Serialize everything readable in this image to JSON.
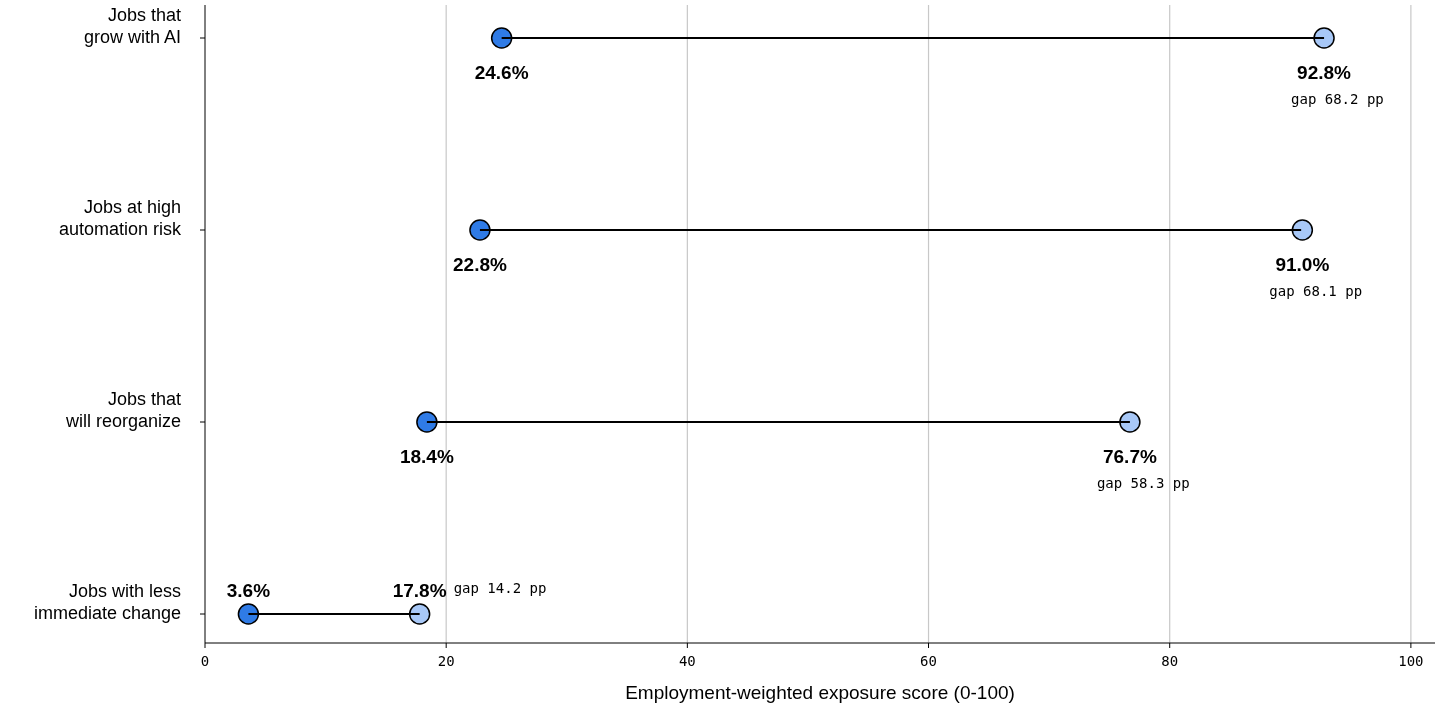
{
  "chart_data": {
    "type": "bar",
    "orientation": "horizontal",
    "xlabel": "Employment-weighted exposure score (0-100)",
    "categories": [
      "Jobs that\ngrow with AI",
      "Jobs at high\nautomation risk",
      "Jobs that\nwill reorganize",
      "Jobs with less\nimmediate change"
    ],
    "xlim": [
      0,
      102
    ],
    "xticks": [
      0,
      20,
      40,
      60,
      80,
      100
    ],
    "grid": "x",
    "marker": "circle",
    "series": [
      {
        "type": "scatter",
        "color": "#2f7be6",
        "values": [
          24.6,
          22.8,
          18.4,
          3.6
        ],
        "value_labels": [
          "24.6%",
          "22.8%",
          "18.4%",
          "3.6%"
        ]
      },
      {
        "type": "scatter",
        "color": "#a8c8f7",
        "values": [
          92.8,
          91.0,
          76.7,
          17.8
        ],
        "value_labels": [
          "92.8%",
          "91.0%",
          "76.7%",
          "17.8%"
        ]
      },
      {
        "color": "#000000",
        "base": [
          24.6,
          22.8,
          18.4,
          3.6
        ],
        "values": [
          68.2,
          68.1,
          58.3,
          14.2
        ]
      }
    ],
    "annotations": [
      "gap 68.2 pp",
      "gap 68.1 pp",
      "gap 58.3 pp",
      "gap 14.2 pp"
    ]
  }
}
